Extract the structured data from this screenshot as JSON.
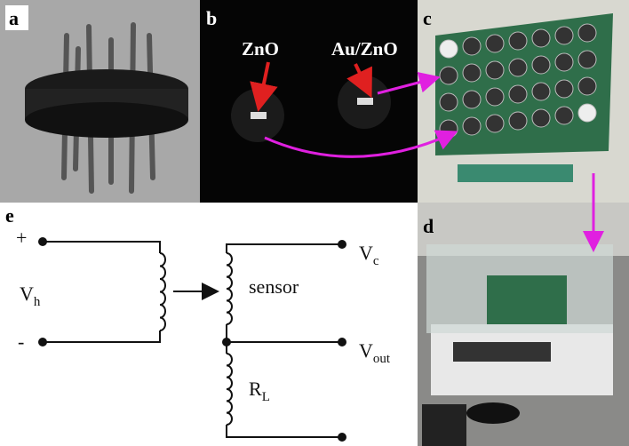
{
  "panels": {
    "a": {
      "label": "a"
    },
    "b": {
      "label": "b",
      "annotations": [
        "ZnO",
        "Au/ZnO"
      ]
    },
    "c": {
      "label": "c"
    },
    "d": {
      "label": "d"
    },
    "e": {
      "label": "e"
    }
  },
  "circuit": {
    "plus": "+",
    "minus": "-",
    "vh": {
      "main": "V",
      "sub": "h"
    },
    "sensor": "sensor",
    "vc": {
      "main": "V",
      "sub": "c"
    },
    "vout": {
      "main": "V",
      "sub": "out"
    },
    "rl": {
      "main": "R",
      "sub": "L"
    }
  }
}
